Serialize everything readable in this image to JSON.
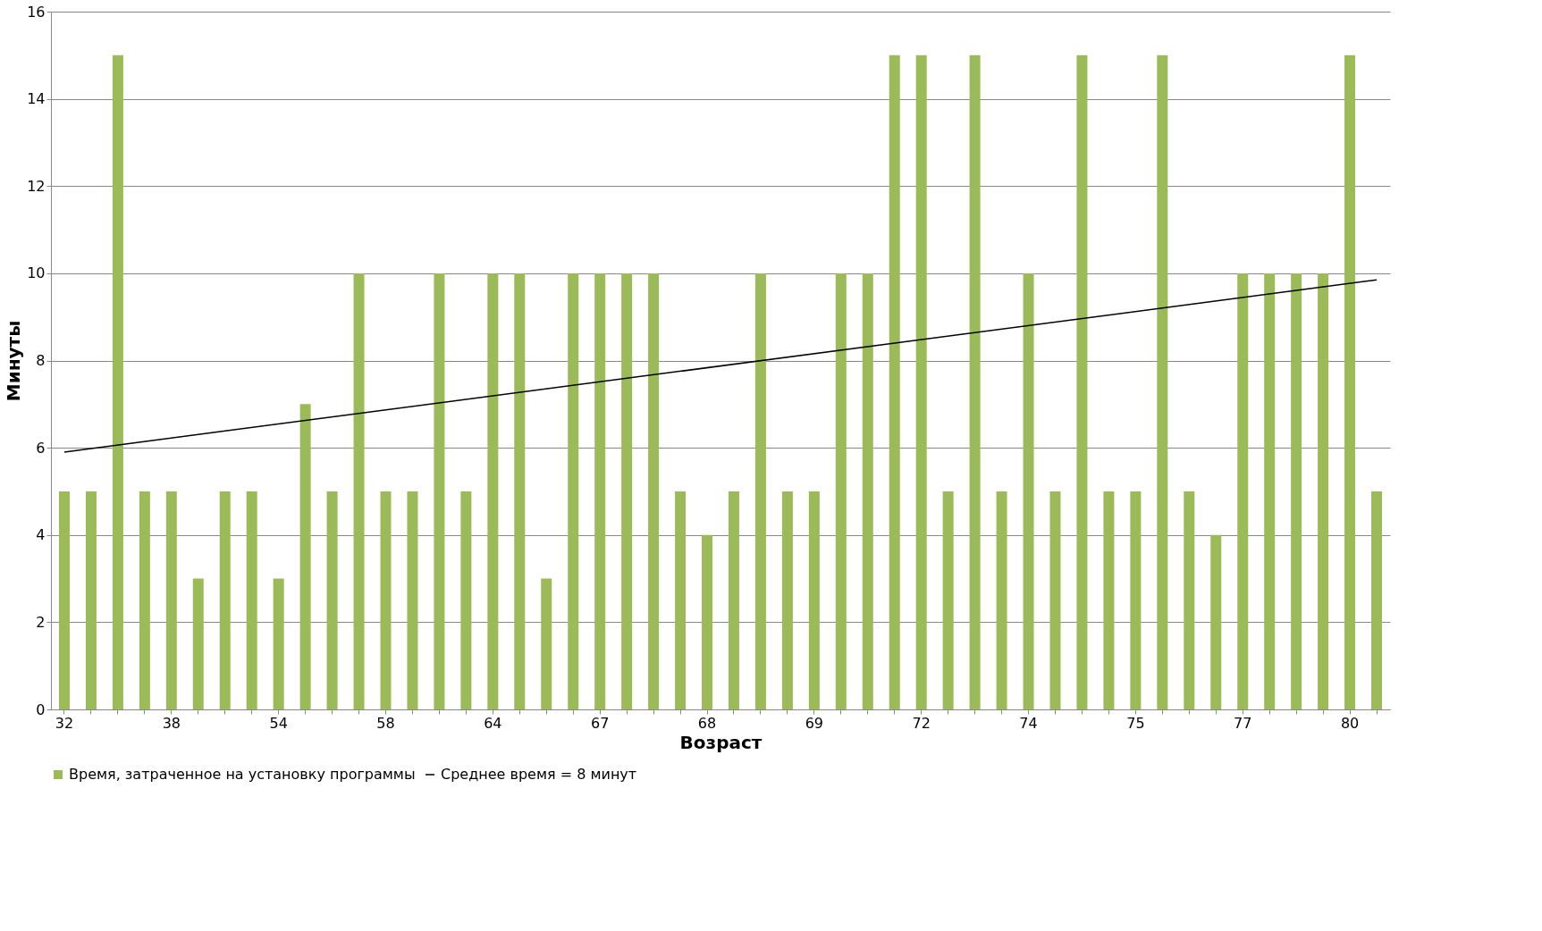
{
  "chart_data": {
    "type": "bar",
    "xlabel": "Возраст",
    "ylabel": "Минуты",
    "categories": [
      "32",
      null,
      null,
      null,
      "38",
      null,
      null,
      null,
      "54",
      null,
      null,
      null,
      "58",
      null,
      null,
      null,
      "64",
      null,
      null,
      null,
      "67",
      null,
      null,
      null,
      "68",
      null,
      null,
      null,
      "69",
      null,
      null,
      null,
      "72",
      null,
      null,
      null,
      "74",
      null,
      null,
      null,
      "75",
      null,
      null,
      null,
      "77",
      null,
      null,
      null,
      "80",
      null
    ],
    "series": [
      {
        "name": "Время, затраченное на установку программы",
        "color": "#9bbb59",
        "values": [
          5,
          5,
          15,
          5,
          5,
          3,
          5,
          5,
          3,
          7,
          5,
          10,
          5,
          5,
          10,
          5,
          10,
          10,
          3,
          10,
          10,
          10,
          10,
          5,
          4,
          5,
          10,
          5,
          5,
          10,
          10,
          15,
          15,
          5,
          15,
          5,
          10,
          5,
          15,
          5,
          5,
          15,
          5,
          4,
          10,
          10,
          10,
          10,
          15,
          5
        ]
      },
      {
        "name": "Среднее время = 8 минут",
        "type": "line",
        "color": "#000000",
        "values": [
          5.9,
          null,
          null,
          null,
          null,
          null,
          null,
          null,
          null,
          null,
          null,
          null,
          null,
          null,
          null,
          null,
          null,
          null,
          null,
          null,
          null,
          null,
          null,
          null,
          null,
          null,
          null,
          null,
          null,
          null,
          null,
          null,
          null,
          null,
          null,
          null,
          null,
          null,
          null,
          null,
          null,
          null,
          null,
          null,
          null,
          null,
          null,
          null,
          null,
          9.85
        ]
      }
    ],
    "ylim": [
      0,
      16
    ],
    "yticks": [
      0,
      2,
      4,
      6,
      8,
      10,
      12,
      14,
      16
    ],
    "grid": "y",
    "legend": "bottom"
  }
}
